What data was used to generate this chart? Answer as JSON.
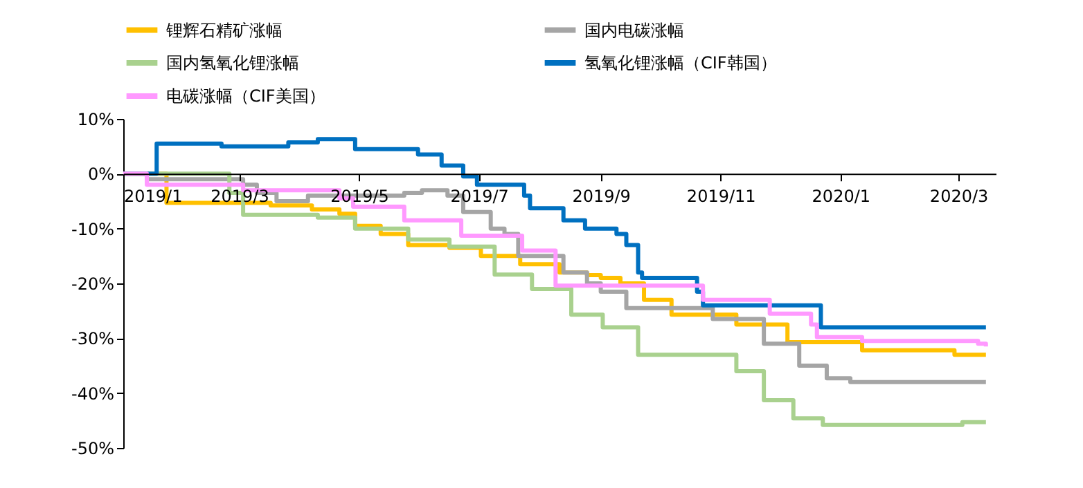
{
  "chart_data": {
    "type": "step",
    "xlim": [
      "2019-01-01",
      "2020-03-20"
    ],
    "xticks": [
      {
        "value": "2019-01-01",
        "label": "2019/1"
      },
      {
        "value": "2019-03-01",
        "label": "2019/3"
      },
      {
        "value": "2019-05-01",
        "label": "2019/5"
      },
      {
        "value": "2019-07-01",
        "label": "2019/7"
      },
      {
        "value": "2019-09-01",
        "label": "2019/9"
      },
      {
        "value": "2019-11-01",
        "label": "2019/11"
      },
      {
        "value": "2020-01-01",
        "label": "2020/1"
      },
      {
        "value": "2020-03-01",
        "label": "2020/3"
      }
    ],
    "ylim": [
      -50,
      10
    ],
    "yticks": [
      {
        "value": -50,
        "label": "-50%"
      },
      {
        "value": -40,
        "label": "-40%"
      },
      {
        "value": -30,
        "label": "-30%"
      },
      {
        "value": -20,
        "label": "-20%"
      },
      {
        "value": -10,
        "label": "-10%"
      },
      {
        "value": 0,
        "label": "0%"
      },
      {
        "value": 10,
        "label": "10%"
      }
    ],
    "grid": false,
    "legend": "top",
    "line_style": "solid",
    "marker": "none",
    "series": [
      {
        "name": "锂辉石精矿涨幅",
        "color": "#ffc000",
        "x": [
          "2019-01-01",
          "2019-01-23",
          "2019-03-17",
          "2019-04-07",
          "2019-04-21",
          "2019-04-29",
          "2019-05-12",
          "2019-05-26",
          "2019-06-16",
          "2019-07-02",
          "2019-07-22",
          "2019-08-11",
          "2019-08-25",
          "2019-09-01",
          "2019-09-11",
          "2019-09-23",
          "2019-10-07",
          "2019-11-09",
          "2019-12-05",
          "2020-01-12",
          "2020-02-28",
          "2020-03-15"
        ],
        "values": [
          0,
          -5.3,
          -5.8,
          -6.5,
          -7.3,
          -9.5,
          -11,
          -13,
          -13.5,
          -15,
          -16.5,
          -18,
          -18.5,
          -19,
          -20,
          -23,
          -25.7,
          -27.5,
          -30.7,
          -32.2,
          -33,
          -33
        ]
      },
      {
        "name": "国内电碳涨幅",
        "color": "#a5a5a5",
        "x": [
          "2019-01-01",
          "2019-01-13",
          "2019-03-03",
          "2019-03-10",
          "2019-03-20",
          "2019-04-05",
          "2019-05-24",
          "2019-06-02",
          "2019-06-15",
          "2019-06-23",
          "2019-07-07",
          "2019-07-14",
          "2019-07-21",
          "2019-08-13",
          "2019-08-25",
          "2019-09-01",
          "2019-09-14",
          "2019-10-28",
          "2019-11-23",
          "2019-12-11",
          "2019-12-25",
          "2020-01-06",
          "2020-03-15"
        ],
        "values": [
          0,
          -1,
          -2,
          -3.5,
          -5,
          -4,
          -3.5,
          -3,
          -4,
          -7,
          -10,
          -11,
          -15,
          -18,
          -20,
          -21.5,
          -24.5,
          -26.5,
          -31,
          -35,
          -37.3,
          -38,
          -38
        ]
      },
      {
        "name": "国内氢氧化锂涨幅",
        "color": "#a9d18e",
        "x": [
          "2019-01-01",
          "2019-02-24",
          "2019-03-03",
          "2019-04-10",
          "2019-04-29",
          "2019-05-26",
          "2019-06-16",
          "2019-07-09",
          "2019-07-28",
          "2019-08-17",
          "2019-09-02",
          "2019-09-20",
          "2019-11-09",
          "2019-11-23",
          "2019-12-08",
          "2019-12-23",
          "2020-03-03",
          "2020-03-15"
        ],
        "values": [
          0,
          -3.5,
          -7.5,
          -8,
          -10,
          -12,
          -13.3,
          -18.4,
          -21,
          -25.7,
          -28,
          -33,
          -36,
          -41.3,
          -44.6,
          -45.8,
          -45.3,
          -45.3
        ]
      },
      {
        "name": "氢氧化锂涨幅（CIF韩国）",
        "color": "#0070c0",
        "x": [
          "2019-01-01",
          "2019-01-18",
          "2019-02-20",
          "2019-03-26",
          "2019-04-10",
          "2019-04-29",
          "2019-05-31",
          "2019-06-12",
          "2019-06-23",
          "2019-06-30",
          "2019-07-24",
          "2019-07-27",
          "2019-08-13",
          "2019-08-24",
          "2019-09-09",
          "2019-09-14",
          "2019-09-20",
          "2019-09-22",
          "2019-10-20",
          "2019-10-23",
          "2019-12-22",
          "2020-03-15"
        ],
        "values": [
          0,
          5.5,
          5,
          5.7,
          6.3,
          4.5,
          3.5,
          1.5,
          -0.5,
          -2,
          -4,
          -6.3,
          -8.5,
          -10,
          -11,
          -13,
          -18,
          -19,
          -21.5,
          -24,
          -28,
          -28
        ]
      },
      {
        "name": "电碳涨幅（CIF美国）",
        "color": "#ff99ff",
        "x": [
          "2019-01-01",
          "2019-01-13",
          "2019-03-03",
          "2019-04-21",
          "2019-04-28",
          "2019-05-24",
          "2019-06-22",
          "2019-07-23",
          "2019-08-09",
          "2019-10-23",
          "2019-11-26",
          "2019-12-17",
          "2019-12-20",
          "2020-01-12",
          "2020-03-11",
          "2020-03-15"
        ],
        "values": [
          0,
          -2,
          -3,
          -4.5,
          -6,
          -8.5,
          -11.3,
          -14,
          -20.4,
          -23,
          -25.5,
          -27.5,
          -29.8,
          -30.5,
          -31,
          -31.5
        ]
      }
    ]
  }
}
